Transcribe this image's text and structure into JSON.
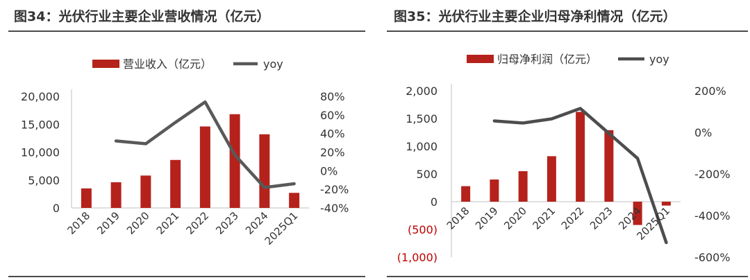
{
  "charts": [
    {
      "title": "图34：光伏行业主要企业营收情况（亿元）",
      "chart_data": {
        "type": "bar+line",
        "categories": [
          "2018",
          "2019",
          "2020",
          "2021",
          "2022",
          "2023",
          "2024",
          "2025Q1"
        ],
        "series": [
          {
            "name": "营业收入（亿元）",
            "type": "bar",
            "axis": "left",
            "values": [
              3500,
              4600,
              5800,
              8600,
              14600,
              16800,
              13200,
              2700
            ]
          },
          {
            "name": "yoy",
            "type": "line",
            "axis": "right",
            "values": [
              null,
              32,
              29,
              52,
              74,
              17,
              -18,
              -14
            ]
          }
        ],
        "y_left": {
          "min": 0,
          "max": 20000,
          "ticks": [
            0,
            5000,
            10000,
            15000,
            20000
          ],
          "tick_labels": [
            "0",
            "5,000",
            "10,000",
            "15,000",
            "20,000"
          ]
        },
        "y_right": {
          "min": -40,
          "max": 80,
          "ticks": [
            -40,
            -20,
            0,
            20,
            40,
            60,
            80
          ],
          "tick_labels": [
            "-40%",
            "-20%",
            "0%",
            "20%",
            "40%",
            "60%",
            "80%"
          ]
        },
        "legend_position": "top",
        "grid": false,
        "colors": {
          "bar": "#b5221c",
          "line": "#595959"
        }
      }
    },
    {
      "title": "图35：光伏行业主要企业归母净利情况（亿元）",
      "chart_data": {
        "type": "bar+line",
        "categories": [
          "2018",
          "2019",
          "2020",
          "2021",
          "2022",
          "2023",
          "2024",
          "2025Q1"
        ],
        "series": [
          {
            "name": "归母净利润（亿元）",
            "type": "bar",
            "axis": "left",
            "values": [
              280,
              400,
              550,
              820,
              1620,
              1290,
              -420,
              -70
            ]
          },
          {
            "name": "yoy",
            "type": "line",
            "axis": "right",
            "values": [
              null,
              55,
              45,
              65,
              115,
              -5,
              -125,
              -530
            ]
          }
        ],
        "y_left": {
          "min": -1000,
          "max": 2000,
          "ticks": [
            -1000,
            -500,
            0,
            500,
            1000,
            1500,
            2000
          ],
          "tick_labels": [
            "(1,000)",
            "(500)",
            "0",
            "500",
            "1,000",
            "1,500",
            "2,000"
          ]
        },
        "y_right": {
          "min": -600,
          "max": 200,
          "ticks": [
            -600,
            -400,
            -200,
            0,
            200
          ],
          "tick_labels": [
            "-600%",
            "-400%",
            "-200%",
            "0%",
            "200%"
          ]
        },
        "legend_position": "top",
        "grid": false,
        "colors": {
          "bar": "#b5221c",
          "line": "#4d4d4d",
          "negative_tick": "#c00000"
        }
      }
    }
  ]
}
